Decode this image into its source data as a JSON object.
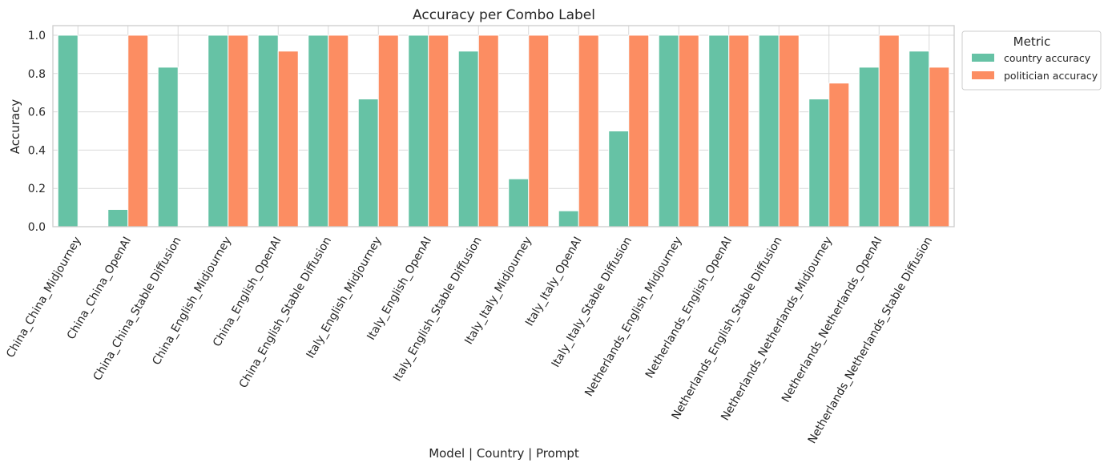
{
  "chart_data": {
    "type": "bar",
    "title": "Accuracy per Combo Label",
    "xlabel": "Model | Country | Prompt",
    "ylabel": "Accuracy",
    "ylim": [
      0,
      1.05
    ],
    "yticks": [
      "0.0",
      "0.2",
      "0.4",
      "0.6",
      "0.8",
      "1.0"
    ],
    "grid": true,
    "legend": {
      "title": "Metric",
      "placement": "outside-top-right"
    },
    "categories": [
      "China_China_Midjourney",
      "China_China_OpenAI",
      "China_China_Stable Diffusion",
      "China_English_Midjourney",
      "China_English_OpenAI",
      "China_English_Stable Diffusion",
      "Italy_English_Midjourney",
      "Italy_English_OpenAI",
      "Italy_English_Stable Diffusion",
      "Italy_Italy_Midjourney",
      "Italy_Italy_OpenAI",
      "Italy_Italy_Stable Diffusion",
      "Netherlands_English_Midjourney",
      "Netherlands_English_OpenAI",
      "Netherlands_English_Stable Diffusion",
      "Netherlands_Netherlands_Midjourney",
      "Netherlands_Netherlands_OpenAI",
      "Netherlands_Netherlands_Stable Diffusion"
    ],
    "series": [
      {
        "name": "country accuracy",
        "color": "#66c2a5",
        "values": [
          1.0,
          0.09,
          0.833,
          1.0,
          1.0,
          1.0,
          0.667,
          1.0,
          0.917,
          0.25,
          0.083,
          0.5,
          1.0,
          1.0,
          1.0,
          0.667,
          0.833,
          0.917
        ]
      },
      {
        "name": "politician accuracy",
        "color": "#fc8d62",
        "values": [
          0.0,
          1.0,
          0.0,
          1.0,
          0.917,
          1.0,
          1.0,
          1.0,
          1.0,
          1.0,
          1.0,
          1.0,
          1.0,
          1.0,
          1.0,
          0.75,
          1.0,
          0.833
        ]
      }
    ]
  }
}
